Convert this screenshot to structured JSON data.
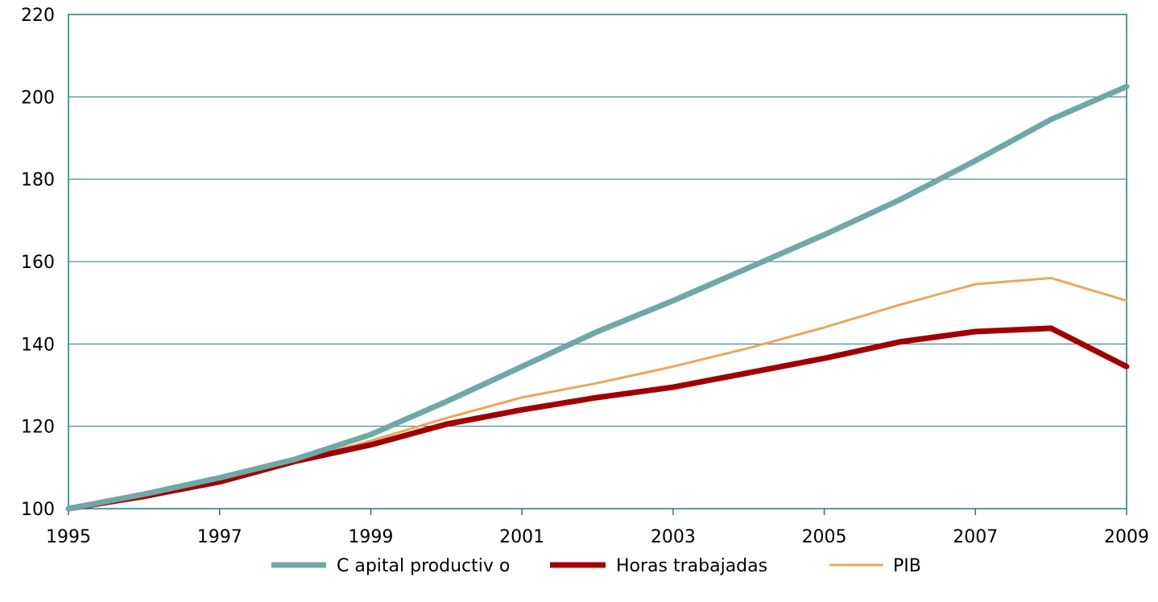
{
  "chart_data": {
    "type": "line",
    "title": "",
    "xlabel": "",
    "ylabel": "",
    "x": [
      1995,
      1996,
      1997,
      1998,
      1999,
      2000,
      2001,
      2002,
      2003,
      2004,
      2005,
      2006,
      2007,
      2008,
      2009
    ],
    "xlim": [
      1995,
      2009
    ],
    "ylim": [
      100,
      220
    ],
    "x_ticks": [
      "1995",
      "1997",
      "1999",
      "2001",
      "2003",
      "2005",
      "2007",
      "2009"
    ],
    "y_ticks": [
      "100",
      "120",
      "140",
      "160",
      "180",
      "200",
      "220"
    ],
    "grid": "horizontal",
    "legend_position": "bottom",
    "series": [
      {
        "name": "C apital productiv o",
        "color": "#6FA8A6",
        "values": [
          100,
          103.5,
          107.5,
          112,
          118,
          126,
          134.5,
          143,
          150.5,
          158.5,
          166.5,
          175,
          184.5,
          194.5,
          202.5
        ]
      },
      {
        "name": "Horas trabajadas",
        "color": "#A00000",
        "values": [
          100,
          103,
          106.5,
          111.5,
          115.5,
          120.5,
          124,
          127,
          129.5,
          133,
          136.5,
          140.5,
          143,
          143.8,
          134.5
        ]
      },
      {
        "name": "PIB",
        "color": "#E8A85C",
        "values": [
          100,
          102.5,
          106.5,
          111.5,
          116.5,
          122,
          127,
          130.5,
          134.5,
          139,
          144,
          149.5,
          154.5,
          156,
          150.5
        ]
      }
    ]
  }
}
